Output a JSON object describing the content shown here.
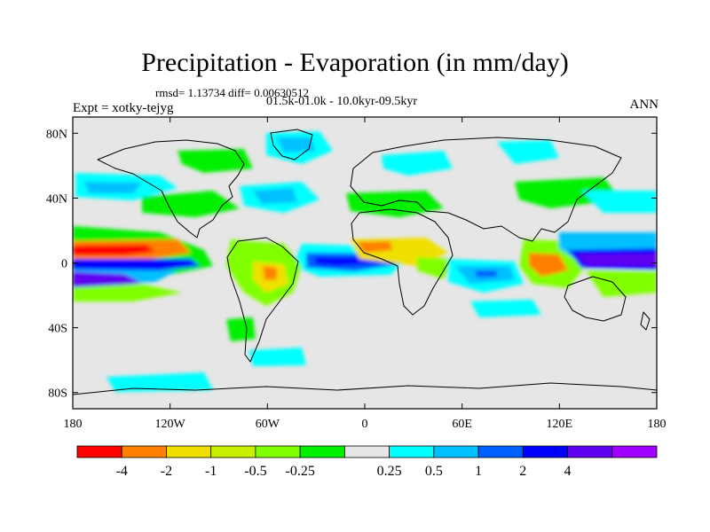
{
  "figure": {
    "title": "Precipitation - Evaporation (in mm/day)",
    "stats": "rmsd= 1.13734 diff= 0.00630512",
    "period": "01.5k-01.0k - 10.0kyr-09.5kyr",
    "experiment": "Expt = xotky-tejyg",
    "season": "ANN"
  },
  "map": {
    "projection": "cylindrical-equidistant",
    "lon_range": [
      -180,
      180
    ],
    "lat_range": [
      -90,
      90
    ],
    "lon_ticks": [
      {
        "value": -180,
        "label": "180"
      },
      {
        "value": -120,
        "label": "120W"
      },
      {
        "value": -60,
        "label": "60W"
      },
      {
        "value": 0,
        "label": "0"
      },
      {
        "value": 60,
        "label": "60E"
      },
      {
        "value": 120,
        "label": "120E"
      },
      {
        "value": 180,
        "label": "180"
      }
    ],
    "lat_ticks": [
      {
        "value": 80,
        "label": "80N"
      },
      {
        "value": 40,
        "label": "40N"
      },
      {
        "value": 0,
        "label": "0"
      },
      {
        "value": -40,
        "label": "40S"
      },
      {
        "value": -80,
        "label": "80S"
      }
    ],
    "background_color": "#e6e6e6"
  },
  "colorbar": {
    "colors": [
      "#ff0000",
      "#ff8000",
      "#f0e000",
      "#c8f000",
      "#80ff00",
      "#00f000",
      "#e6e6e6",
      "#00ffff",
      "#00c0ff",
      "#0060ff",
      "#0000ff",
      "#6000f0",
      "#a000ff"
    ],
    "labels": [
      "-4",
      "-2",
      "-1",
      "-0.5",
      "-0.25",
      "0.25",
      "0.5",
      "1",
      "2",
      "4"
    ]
  },
  "features": [
    {
      "name": "pacific-west-dry-band",
      "lon": [
        -180,
        -140
      ],
      "lat": [
        -3,
        9
      ],
      "level": "-4"
    },
    {
      "name": "pacific-west-wet-band",
      "lon": [
        -180,
        -150
      ],
      "lat": [
        -18,
        -6
      ],
      "level": "4"
    },
    {
      "name": "atlantic-wet-band",
      "lon": [
        -45,
        -10
      ],
      "lat": [
        -5,
        10
      ],
      "level": "2"
    },
    {
      "name": "indian-ocean-wet",
      "lon": [
        45,
        95
      ],
      "lat": [
        -20,
        0
      ],
      "level": "1"
    },
    {
      "name": "west-pacific-wet",
      "lon": [
        130,
        180
      ],
      "lat": [
        -10,
        5
      ],
      "level": "4"
    },
    {
      "name": "sahel-dry",
      "lon": [
        -10,
        35
      ],
      "lat": [
        5,
        15
      ],
      "level": "-2"
    },
    {
      "name": "maritime-continent-dry",
      "lon": [
        95,
        125
      ],
      "lat": [
        -15,
        5
      ],
      "level": "-2"
    }
  ]
}
